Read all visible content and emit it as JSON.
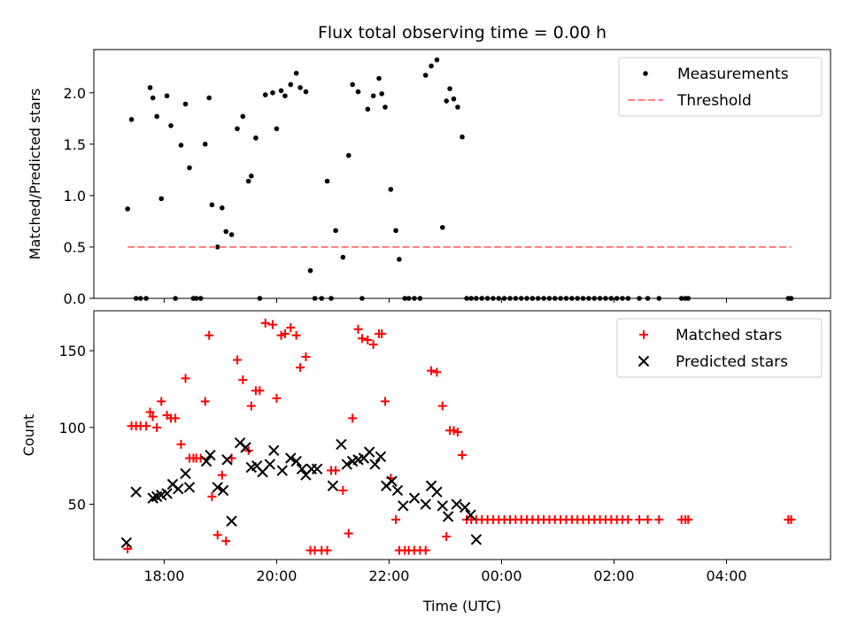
{
  "title": "Flux total observing time = 0.00 h",
  "chart_data": [
    {
      "type": "scatter",
      "title": "Flux total observing time = 0.00 h",
      "xlabel": "",
      "ylabel": "Matched/Predicted stars",
      "xlim": [
        16.75,
        29.85
      ],
      "ylim": [
        0,
        2.42
      ],
      "yticks": [
        0.0,
        0.5,
        1.0,
        1.5,
        2.0
      ],
      "ytick_labels": [
        "0.0",
        "0.5",
        "1.0",
        "1.5",
        "2.0"
      ],
      "xticks": [
        18,
        20,
        22,
        24,
        26,
        28
      ],
      "legend": {
        "position": "top-right",
        "entries": [
          "Measurements",
          "Threshold"
        ]
      },
      "series": [
        {
          "name": "Measurements",
          "kind": "scatter",
          "color": "#000000",
          "x": [
            17.35,
            17.42,
            17.5,
            17.58,
            17.68,
            17.75,
            17.8,
            17.87,
            17.95,
            18.05,
            18.12,
            18.2,
            18.3,
            18.38,
            18.45,
            18.52,
            18.57,
            18.65,
            18.73,
            18.8,
            18.85,
            18.95,
            19.03,
            19.1,
            19.2,
            19.3,
            19.4,
            19.5,
            19.55,
            19.63,
            19.7,
            19.8,
            19.93,
            20.0,
            20.08,
            20.15,
            20.25,
            20.35,
            20.42,
            20.52,
            20.6,
            20.68,
            20.8,
            20.9,
            20.97,
            21.05,
            21.18,
            21.28,
            21.35,
            21.45,
            21.52,
            21.62,
            21.72,
            21.82,
            21.87,
            21.93,
            22.03,
            22.12,
            22.18,
            22.28,
            22.35,
            22.45,
            22.55,
            22.65,
            22.75,
            22.85,
            22.95,
            23.02,
            23.08,
            23.15,
            23.22,
            23.3,
            23.38,
            23.46,
            23.55,
            23.65,
            23.75,
            23.85,
            23.95,
            24.05,
            24.15,
            24.25,
            24.35,
            24.45,
            24.55,
            24.65,
            24.75,
            24.85,
            24.95,
            25.05,
            25.15,
            25.25,
            25.35,
            25.45,
            25.55,
            25.65,
            25.75,
            25.85,
            25.95,
            26.05,
            26.15,
            26.25,
            26.45,
            26.6,
            26.8,
            27.2,
            27.27,
            27.32,
            29.1,
            29.15
          ],
          "y": [
            0.87,
            1.74,
            0.0,
            0.0,
            0.0,
            2.05,
            1.95,
            1.77,
            0.97,
            1.97,
            1.68,
            0.0,
            1.49,
            1.89,
            1.27,
            0.0,
            0.0,
            0.0,
            1.5,
            1.95,
            0.91,
            0.5,
            0.88,
            0.65,
            0.62,
            1.65,
            1.77,
            1.14,
            1.19,
            1.56,
            0.0,
            1.98,
            2.0,
            1.65,
            2.02,
            1.97,
            2.08,
            2.19,
            2.05,
            2.01,
            0.27,
            0.0,
            0.0,
            1.14,
            0.0,
            0.66,
            0.4,
            1.39,
            2.08,
            2.01,
            0.0,
            1.84,
            1.97,
            2.14,
            1.99,
            1.86,
            1.06,
            0.66,
            0.38,
            0.0,
            0.0,
            0.0,
            0.0,
            2.17,
            2.26,
            2.32,
            0.69,
            1.92,
            2.04,
            1.94,
            1.86,
            1.57,
            0.0,
            0.0,
            0.0,
            0.0,
            0.0,
            0.0,
            0.0,
            0.0,
            0.0,
            0.0,
            0.0,
            0.0,
            0.0,
            0.0,
            0.0,
            0.0,
            0.0,
            0.0,
            0.0,
            0.0,
            0.0,
            0.0,
            0.0,
            0.0,
            0.0,
            0.0,
            0.0,
            0.0,
            0.0,
            0.0,
            0.0,
            0.0,
            0.0,
            0.0,
            0.0,
            0.0,
            0.0,
            0.0
          ]
        },
        {
          "name": "Threshold",
          "kind": "line",
          "style": "dashed",
          "color": "#ff7f7f",
          "x": [
            17.35,
            29.15
          ],
          "y": [
            0.5,
            0.5
          ]
        }
      ]
    },
    {
      "type": "scatter",
      "title": "",
      "xlabel": "Time (UTC)",
      "ylabel": "Count",
      "xlim": [
        16.75,
        29.85
      ],
      "ylim": [
        14,
        176
      ],
      "yticks": [
        50,
        100,
        150
      ],
      "ytick_labels": [
        "50",
        "100",
        "150"
      ],
      "xticks": [
        18,
        20,
        22,
        24,
        26,
        28
      ],
      "xtick_labels": [
        "18:00",
        "20:00",
        "22:00",
        "00:00",
        "02:00",
        "04:00"
      ],
      "legend": {
        "position": "top-right",
        "entries": [
          "Matched stars",
          "Predicted stars"
        ]
      },
      "series": [
        {
          "name": "Matched stars",
          "marker": "+",
          "color": "#ff0000",
          "x": [
            17.35,
            17.42,
            17.5,
            17.58,
            17.68,
            17.75,
            17.8,
            17.87,
            17.95,
            18.05,
            18.12,
            18.2,
            18.3,
            18.38,
            18.45,
            18.52,
            18.57,
            18.65,
            18.73,
            18.8,
            18.85,
            18.95,
            19.03,
            19.1,
            19.2,
            19.3,
            19.4,
            19.5,
            19.55,
            19.63,
            19.7,
            19.8,
            19.93,
            20.0,
            20.08,
            20.15,
            20.25,
            20.35,
            20.42,
            20.52,
            20.6,
            20.68,
            20.8,
            20.9,
            20.97,
            21.05,
            21.18,
            21.28,
            21.35,
            21.45,
            21.52,
            21.62,
            21.72,
            21.82,
            21.87,
            21.93,
            22.03,
            22.12,
            22.18,
            22.28,
            22.35,
            22.45,
            22.55,
            22.65,
            22.75,
            22.85,
            22.95,
            23.02,
            23.08,
            23.15,
            23.22,
            23.3,
            23.38,
            23.46,
            23.55,
            23.65,
            23.75,
            23.85,
            23.95,
            24.05,
            24.15,
            24.25,
            24.35,
            24.45,
            24.55,
            24.65,
            24.75,
            24.85,
            24.95,
            25.05,
            25.15,
            25.25,
            25.35,
            25.45,
            25.55,
            25.65,
            25.75,
            25.85,
            25.95,
            26.05,
            26.15,
            26.25,
            26.45,
            26.6,
            26.8,
            27.2,
            27.27,
            27.32,
            29.1,
            29.15
          ],
          "y": [
            21,
            101,
            101,
            101,
            101,
            110,
            107,
            100,
            117,
            108,
            106,
            106,
            89,
            132,
            80,
            80,
            80,
            80,
            117,
            160,
            55,
            30,
            69,
            26,
            80,
            144,
            131,
            85,
            114,
            124,
            124,
            168,
            167,
            119,
            160,
            161,
            165,
            160,
            139,
            146,
            20,
            20,
            20,
            20,
            72,
            72,
            59,
            31,
            106,
            164,
            158,
            157,
            154,
            161,
            161,
            117,
            67,
            40,
            20,
            20,
            20,
            20,
            20,
            20,
            137,
            136,
            114,
            29,
            98,
            98,
            97,
            82,
            40,
            40,
            40,
            40,
            40,
            40,
            40,
            40,
            40,
            40,
            40,
            40,
            40,
            40,
            40,
            40,
            40,
            40,
            40,
            40,
            40,
            40,
            40,
            40,
            40,
            40,
            40,
            40,
            40,
            40,
            40,
            40,
            40,
            40,
            40,
            40,
            40,
            40
          ]
        },
        {
          "name": "Predicted stars",
          "marker": "x",
          "color": "#000000",
          "x": [
            17.33,
            17.5,
            17.8,
            17.87,
            17.95,
            18.05,
            18.15,
            18.25,
            18.38,
            18.45,
            18.75,
            18.82,
            18.95,
            19.05,
            19.12,
            19.2,
            19.35,
            19.45,
            19.55,
            19.65,
            19.75,
            19.88,
            19.95,
            20.1,
            20.25,
            20.35,
            20.45,
            20.52,
            20.62,
            20.72,
            21.0,
            21.15,
            21.25,
            21.35,
            21.45,
            21.55,
            21.65,
            21.75,
            21.85,
            21.95,
            22.05,
            22.15,
            22.25,
            22.45,
            22.65,
            22.75,
            22.85,
            22.95,
            23.05,
            23.2,
            23.35,
            23.45,
            23.55
          ],
          "y": [
            25,
            58,
            54,
            55,
            56,
            57,
            63,
            60,
            70,
            61,
            78,
            82,
            61,
            59,
            79,
            39,
            90,
            87,
            74,
            75,
            71,
            76,
            85,
            72,
            80,
            78,
            73,
            69,
            73,
            73,
            62,
            89,
            76,
            78,
            79,
            80,
            84,
            76,
            81,
            62,
            65,
            59,
            49,
            54,
            50,
            62,
            58,
            49,
            42,
            50,
            48,
            43,
            27
          ]
        }
      ]
    }
  ]
}
